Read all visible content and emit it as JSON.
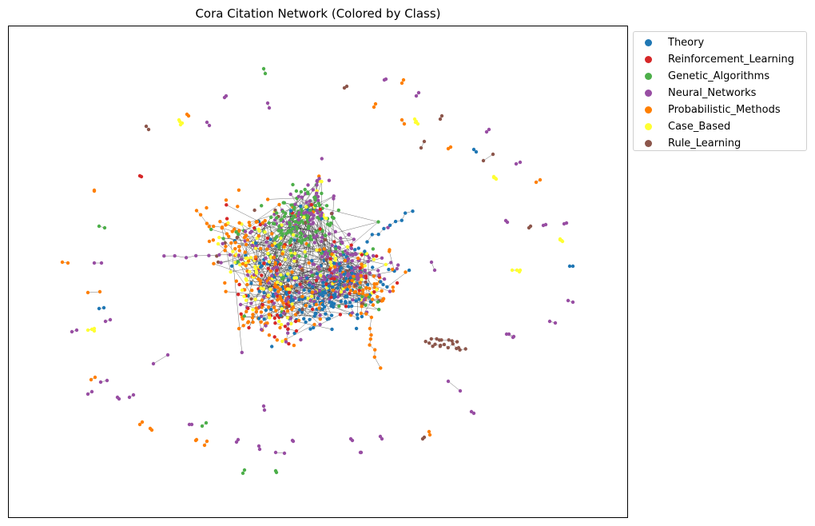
{
  "chart_data": {
    "type": "scatter",
    "title": "Cora Citation Network (Colored by Class)",
    "xlabel": "",
    "ylabel": "",
    "grid": false,
    "axes_ticks": false,
    "legend_placement": "outside-top-right",
    "series": [
      {
        "name": "Theory",
        "color": "#1f77b4"
      },
      {
        "name": "Reinforcement_Learning",
        "color": "#d62728"
      },
      {
        "name": "Genetic_Algorithms",
        "color": "#4daf4a"
      },
      {
        "name": "Neural_Networks",
        "color": "#984ea3"
      },
      {
        "name": "Probabilistic_Methods",
        "color": "#ff7f00"
      },
      {
        "name": "Case_Based",
        "color": "#ffff33"
      },
      {
        "name": "Rule_Learning",
        "color": "#8c564b"
      }
    ],
    "edge_color": "#333333"
  }
}
